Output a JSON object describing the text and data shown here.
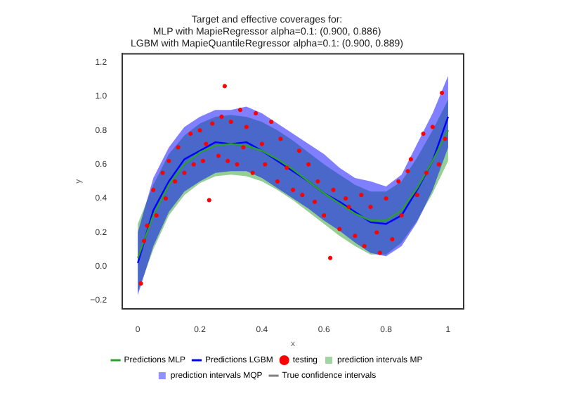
{
  "chart_data": {
    "type": "line",
    "title": "Target and effective coverages for:\nMLP with MapieRegressor alpha=0.1: (0.900, 0.886)\nLGBM with MapieQuantileRegressor alpha=0.1: (0.900, 0.889)",
    "xlabel": "x",
    "ylabel": "y",
    "x": [
      0,
      0.05,
      0.1,
      0.15,
      0.2,
      0.25,
      0.3,
      0.35,
      0.4,
      0.45,
      0.5,
      0.55,
      0.6,
      0.65,
      0.7,
      0.75,
      0.8,
      0.85,
      0.9,
      0.95,
      1.0
    ],
    "xlim": [
      -0.05,
      1.05
    ],
    "ylim": [
      -0.25,
      1.25
    ],
    "xticks": [
      0,
      0.2,
      0.4,
      0.6,
      0.8,
      1
    ],
    "yticks": [
      {
        "value": -0.2,
        "label": "−0.2"
      },
      {
        "value": 0,
        "label": "0.0"
      },
      {
        "value": 0.2,
        "label": "0.2"
      },
      {
        "value": 0.4,
        "label": "0.4"
      },
      {
        "value": 0.6,
        "label": "0.6"
      },
      {
        "value": 0.8,
        "label": "0.8"
      },
      {
        "value": 1,
        "label": "1.0"
      },
      {
        "value": 1.2,
        "label": "1.2"
      }
    ],
    "grid": false,
    "legend": "bottom",
    "series": [
      {
        "name": "Predictions MLP",
        "color": "#2ca02c",
        "values": [
          0.05,
          0.3,
          0.48,
          0.6,
          0.67,
          0.71,
          0.72,
          0.71,
          0.68,
          0.63,
          0.57,
          0.5,
          0.43,
          0.37,
          0.31,
          0.27,
          0.27,
          0.33,
          0.46,
          0.62,
          0.8
        ],
        "lower": [
          -0.15,
          0.1,
          0.3,
          0.42,
          0.49,
          0.53,
          0.54,
          0.53,
          0.5,
          0.45,
          0.39,
          0.32,
          0.25,
          0.18,
          0.12,
          0.07,
          0.07,
          0.14,
          0.27,
          0.43,
          0.62
        ],
        "upper": [
          0.25,
          0.48,
          0.66,
          0.77,
          0.84,
          0.88,
          0.89,
          0.88,
          0.85,
          0.8,
          0.74,
          0.67,
          0.6,
          0.54,
          0.48,
          0.44,
          0.44,
          0.5,
          0.64,
          0.8,
          0.98
        ]
      },
      {
        "name": "Predictions LGBM",
        "color": "#0000ff",
        "values": [
          0.02,
          0.33,
          0.5,
          0.63,
          0.68,
          0.73,
          0.72,
          0.73,
          0.68,
          0.62,
          0.56,
          0.5,
          0.43,
          0.38,
          0.32,
          0.26,
          0.25,
          0.3,
          0.45,
          0.62,
          0.88
        ],
        "lower": [
          -0.17,
          0.12,
          0.32,
          0.44,
          0.5,
          0.55,
          0.56,
          0.56,
          0.52,
          0.46,
          0.4,
          0.34,
          0.27,
          0.21,
          0.14,
          0.08,
          0.06,
          0.12,
          0.26,
          0.45,
          0.7
        ],
        "upper": [
          0.2,
          0.52,
          0.7,
          0.82,
          0.88,
          0.92,
          0.92,
          0.94,
          0.9,
          0.84,
          0.78,
          0.72,
          0.66,
          0.58,
          0.52,
          0.5,
          0.47,
          0.54,
          0.72,
          0.9,
          1.12
        ]
      },
      {
        "name": "testing",
        "type": "scatter",
        "color": "#ff0000",
        "marker": "circle",
        "x": [
          0.01,
          0.02,
          0.03,
          0.05,
          0.06,
          0.08,
          0.09,
          0.1,
          0.12,
          0.13,
          0.15,
          0.17,
          0.18,
          0.2,
          0.21,
          0.22,
          0.23,
          0.24,
          0.26,
          0.27,
          0.28,
          0.29,
          0.3,
          0.32,
          0.33,
          0.34,
          0.35,
          0.37,
          0.38,
          0.4,
          0.41,
          0.43,
          0.45,
          0.46,
          0.48,
          0.5,
          0.52,
          0.53,
          0.55,
          0.57,
          0.58,
          0.6,
          0.62,
          0.63,
          0.65,
          0.67,
          0.68,
          0.7,
          0.72,
          0.73,
          0.75,
          0.77,
          0.78,
          0.8,
          0.82,
          0.84,
          0.85,
          0.87,
          0.88,
          0.9,
          0.92,
          0.93,
          0.95,
          0.97,
          0.98,
          0.99
        ],
        "values": [
          -0.1,
          0.15,
          0.24,
          0.45,
          0.3,
          0.55,
          0.4,
          0.62,
          0.5,
          0.7,
          0.55,
          0.78,
          0.6,
          0.8,
          0.62,
          0.72,
          0.39,
          0.84,
          0.65,
          0.88,
          1.06,
          0.62,
          0.85,
          0.6,
          0.92,
          0.7,
          0.82,
          0.55,
          0.9,
          0.72,
          0.6,
          0.85,
          0.5,
          0.75,
          0.58,
          0.45,
          0.68,
          0.42,
          0.6,
          0.38,
          0.5,
          0.3,
          0.05,
          0.45,
          0.22,
          0.4,
          0.35,
          0.18,
          0.42,
          0.12,
          0.35,
          0.2,
          0.08,
          0.4,
          0.16,
          0.5,
          0.3,
          0.56,
          0.63,
          0.42,
          0.78,
          0.55,
          0.82,
          0.6,
          1.02,
          0.75
        ]
      },
      {
        "name": "prediction intervals MP",
        "type": "area",
        "color": "#95cf95",
        "values": [
          null,
          null,
          null,
          null,
          null,
          null,
          null,
          null,
          null,
          null,
          null,
          null,
          null,
          null,
          null,
          null,
          null,
          null,
          null,
          null,
          null
        ]
      },
      {
        "name": "prediction intervals MQP",
        "type": "area",
        "color": "#8080ff",
        "values": [
          null,
          null,
          null,
          null,
          null,
          null,
          null,
          null,
          null,
          null,
          null,
          null,
          null,
          null,
          null,
          null,
          null,
          null,
          null,
          null,
          null
        ]
      },
      {
        "name": "True confidence intervals",
        "color": "#808080",
        "values": [
          null,
          null,
          null,
          null,
          null,
          null,
          null,
          null,
          null,
          null,
          null,
          null,
          null,
          null,
          null,
          null,
          null,
          null,
          null,
          null,
          null
        ]
      }
    ]
  }
}
